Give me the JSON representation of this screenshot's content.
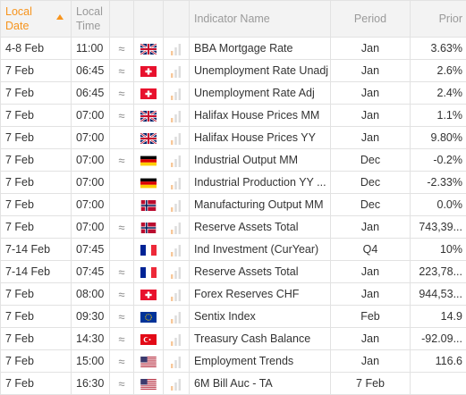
{
  "headers": {
    "local_date": "Local Date",
    "local_time": "Local Time",
    "indicator_name": "Indicator Name",
    "period": "Period",
    "prior": "Prior"
  },
  "colors": {
    "accent": "#f7941d",
    "header_bg": "#f3f3f3",
    "grid": "#e2e2e2"
  },
  "rows": [
    {
      "date": "4-8 Feb",
      "time": "11:00",
      "volatile": true,
      "flag": "uk-flag",
      "indicator": "BBA Mortgage Rate",
      "period": "Jan",
      "prior": "3.63%"
    },
    {
      "date": "7 Feb",
      "time": "06:45",
      "volatile": true,
      "flag": "switzerland-flag",
      "indicator": "Unemployment Rate Unadj",
      "period": "Jan",
      "prior": "2.6%"
    },
    {
      "date": "7 Feb",
      "time": "06:45",
      "volatile": true,
      "flag": "switzerland-flag",
      "indicator": "Unemployment Rate Adj",
      "period": "Jan",
      "prior": "2.4%"
    },
    {
      "date": "7 Feb",
      "time": "07:00",
      "volatile": true,
      "flag": "uk-flag",
      "indicator": "Halifax House Prices MM",
      "period": "Jan",
      "prior": "1.1%"
    },
    {
      "date": "7 Feb",
      "time": "07:00",
      "volatile": false,
      "flag": "uk-flag",
      "indicator": "Halifax House Prices YY",
      "period": "Jan",
      "prior": "9.80%"
    },
    {
      "date": "7 Feb",
      "time": "07:00",
      "volatile": true,
      "flag": "germany-flag",
      "indicator": "Industrial Output MM",
      "period": "Dec",
      "prior": "-0.2%"
    },
    {
      "date": "7 Feb",
      "time": "07:00",
      "volatile": false,
      "flag": "germany-flag",
      "indicator": "Industrial Production YY ...",
      "period": "Dec",
      "prior": "-2.33%"
    },
    {
      "date": "7 Feb",
      "time": "07:00",
      "volatile": false,
      "flag": "norway-flag",
      "indicator": "Manufacturing Output MM",
      "period": "Dec",
      "prior": "0.0%"
    },
    {
      "date": "7 Feb",
      "time": "07:00",
      "volatile": true,
      "flag": "norway-flag",
      "indicator": "Reserve Assets Total",
      "period": "Jan",
      "prior": "743,39..."
    },
    {
      "date": "7-14 Feb",
      "time": "07:45",
      "volatile": false,
      "flag": "france-flag",
      "indicator": "Ind Investment (CurYear)",
      "period": "Q4",
      "prior": "10%"
    },
    {
      "date": "7-14 Feb",
      "time": "07:45",
      "volatile": true,
      "flag": "france-flag",
      "indicator": "Reserve Assets Total",
      "period": "Jan",
      "prior": "223,78..."
    },
    {
      "date": "7 Feb",
      "time": "08:00",
      "volatile": true,
      "flag": "switzerland-flag",
      "indicator": "Forex Reserves CHF",
      "period": "Jan",
      "prior": "944,53..."
    },
    {
      "date": "7 Feb",
      "time": "09:30",
      "volatile": true,
      "flag": "eu-flag",
      "indicator": "Sentix Index",
      "period": "Feb",
      "prior": "14.9"
    },
    {
      "date": "7 Feb",
      "time": "14:30",
      "volatile": true,
      "flag": "turkey-flag",
      "indicator": "Treasury Cash Balance",
      "period": "Jan",
      "prior": "-92.09..."
    },
    {
      "date": "7 Feb",
      "time": "15:00",
      "volatile": true,
      "flag": "usa-flag",
      "indicator": "Employment Trends",
      "period": "Jan",
      "prior": "116.6"
    },
    {
      "date": "7 Feb",
      "time": "16:30",
      "volatile": true,
      "flag": "usa-flag",
      "indicator": "6M Bill Auc - TA",
      "period": "7 Feb",
      "prior": ""
    }
  ]
}
